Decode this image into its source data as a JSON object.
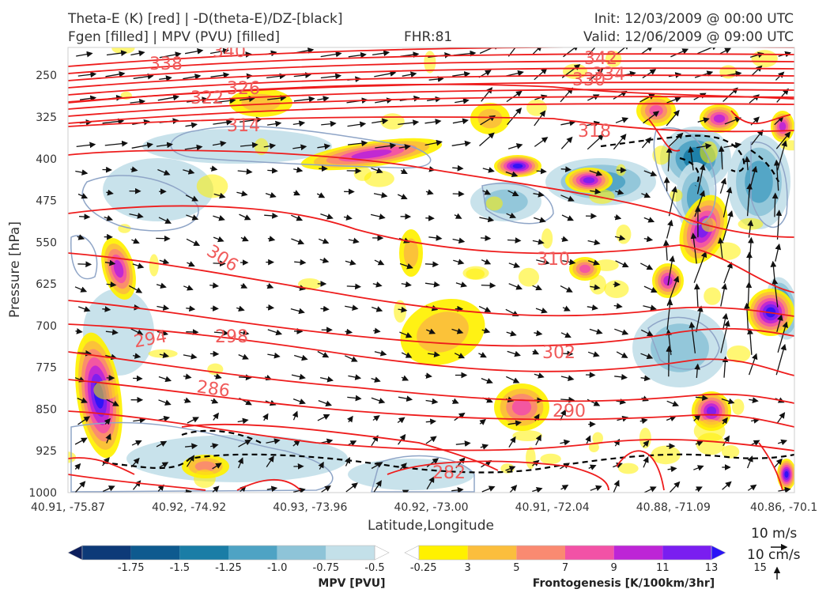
{
  "header": {
    "title_left_1": "Theta-E (K) [red] | -D(theta-E)/DZ-[black]",
    "title_left_2": "Fgen [filled] | MPV (PVU) [filled]",
    "fhr": "FHR:81",
    "init": "Init: 12/03/2009 @ 00:00 UTC",
    "valid": "Valid: 12/06/2009 @ 09:00 UTC"
  },
  "chart_data": {
    "type": "cross-section",
    "xlabel": "Latitude,Longitude",
    "ylabel": "Pressure [hPa]",
    "ylim": [
      1000,
      200
    ],
    "y_ticks": [
      250,
      325,
      400,
      475,
      550,
      625,
      700,
      775,
      850,
      925,
      1000
    ],
    "x_ticks": [
      "40.91, -75.87",
      "40.92, -74.92",
      "40.93, -73.96",
      "40.92, -73.00",
      "40.91, -72.04",
      "40.88, -71.09",
      "40.86, -70.1"
    ],
    "theta_e_labels": [
      "338",
      "340",
      "342",
      "334",
      "330",
      "326",
      "322",
      "318",
      "314",
      "310",
      "306",
      "302",
      "298",
      "294",
      "290",
      "286",
      "282"
    ],
    "colors": {
      "theta_e": "#ee1c1c",
      "dthetae_dz": "#000000",
      "mpv_contour": "#8fa5c7"
    },
    "mpv_colorbar": {
      "label": "MPV [PVU]",
      "ticks": [
        "-1.75",
        "-1.5",
        "-1.25",
        "-1.0",
        "-0.75",
        "-0.5",
        "-0.25"
      ],
      "colors": [
        "#0c1e5c",
        "#0d3a78",
        "#0e5a8f",
        "#1a7da6",
        "#4ea3c4",
        "#8ec4d8",
        "#c3e0e9",
        "#ffffff"
      ]
    },
    "fgen_colorbar": {
      "label": "Frontogenesis [K/100km/3hr]",
      "ticks": [
        "3",
        "5",
        "7",
        "9",
        "11",
        "13",
        "15"
      ],
      "colors": [
        "#ffffff",
        "#fff100",
        "#fbbe3d",
        "#fa8a71",
        "#f252a6",
        "#bd25d6",
        "#7a1ef0",
        "#2a14f6"
      ]
    },
    "wind_scale": {
      "horizontal": "10 m/s",
      "vertical": "10 cm/s"
    }
  }
}
